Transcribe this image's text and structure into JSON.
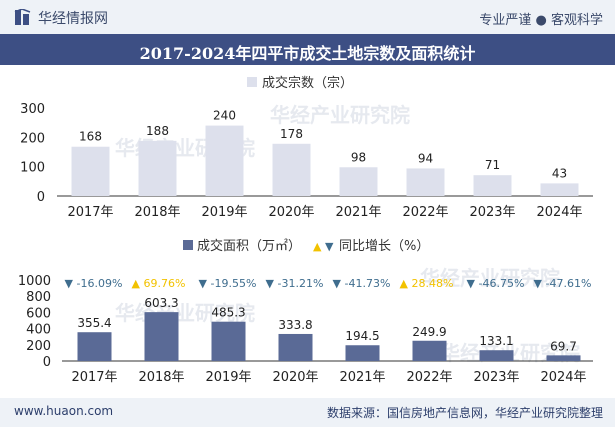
{
  "header": {
    "site_name": "华经情报网",
    "slogan": "专业严谨 ● 客观科学"
  },
  "title": "2017-2024年四平市成交土地宗数及面积统计",
  "footer": {
    "url": "www.huaon.com",
    "source": "数据来源：国信房地产信息网，华经产业研究院整理"
  },
  "watermark": "华经产业研究院",
  "colors": {
    "bar_light": "#dde0ec",
    "bar_dark": "#5a6a96",
    "up": "#f2c200",
    "down": "#3f6d8e"
  },
  "chart_data": [
    {
      "type": "bar",
      "legend": "成交宗数（宗）",
      "categories": [
        "2017年",
        "2018年",
        "2019年",
        "2020年",
        "2021年",
        "2022年",
        "2023年",
        "2024年"
      ],
      "values": [
        168,
        188,
        240,
        178,
        98,
        94,
        71,
        43
      ],
      "value_labels": [
        "168",
        "188",
        "240",
        "178",
        "98",
        "94",
        "71",
        "43"
      ],
      "yticks": [
        "300",
        "200",
        "100",
        "0"
      ],
      "ylim": [
        0,
        300
      ]
    },
    {
      "type": "bar",
      "legend": [
        "成交面积（万㎡）",
        "同比增长（%）"
      ],
      "categories": [
        "2017年",
        "2018年",
        "2019年",
        "2020年",
        "2021年",
        "2022年",
        "2023年",
        "2024年"
      ],
      "values": [
        355.4,
        603.3,
        485.3,
        333.8,
        194.5,
        249.9,
        133.1,
        69.7
      ],
      "value_labels": [
        "355.4",
        "603.3",
        "485.3",
        "333.8",
        "194.5",
        "249.9",
        "133.1",
        "69.7"
      ],
      "yoy_labels": [
        "-16.09%",
        "69.76%",
        "-19.55%",
        "-31.21%",
        "-41.73%",
        "28.48%",
        "-46.75%",
        "-47.61%"
      ],
      "yoy_direction": [
        "down",
        "up",
        "down",
        "down",
        "down",
        "up",
        "down",
        "down"
      ],
      "yticks": [
        "1000",
        "800",
        "600",
        "400",
        "200",
        "0"
      ],
      "ylim": [
        0,
        1000
      ]
    }
  ]
}
